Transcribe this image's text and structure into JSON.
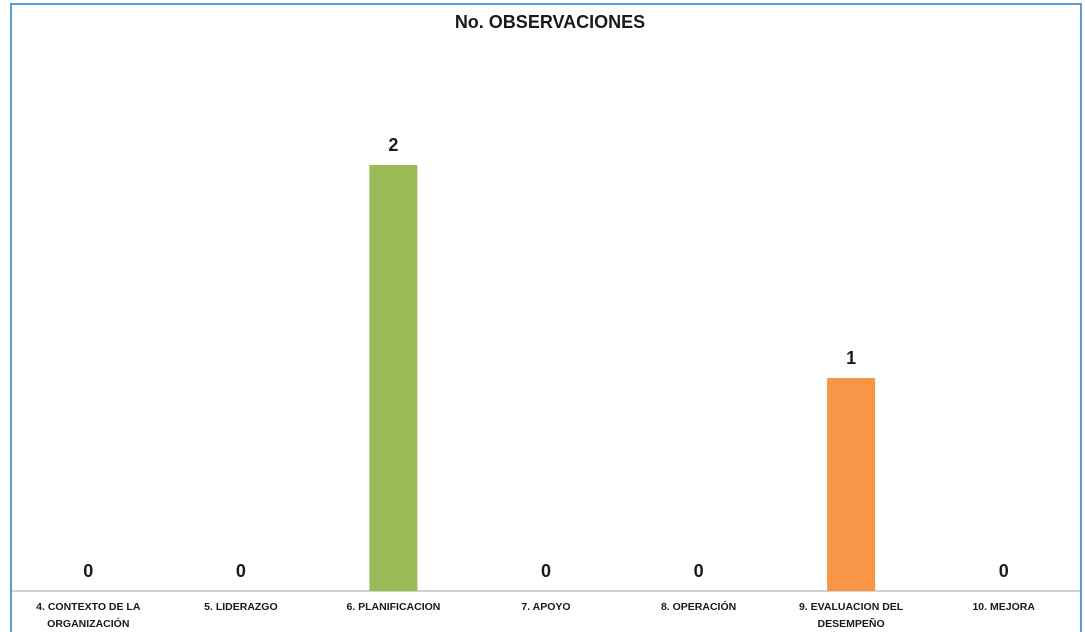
{
  "chart_data": {
    "type": "bar",
    "title": "No. OBSERVACIONES",
    "xlabel": "",
    "ylabel": "",
    "categories": [
      [
        "4. CONTEXTO DE LA",
        "ORGANIZACIÓN"
      ],
      [
        "5. LIDERAZGO"
      ],
      [
        "6. PLANIFICACION"
      ],
      [
        "7. APOYO"
      ],
      [
        "8. OPERACIÓN"
      ],
      [
        "9. EVALUACION DEL",
        "DESEMPEÑO"
      ],
      [
        "10. MEJORA"
      ]
    ],
    "values": [
      0,
      0,
      2,
      0,
      0,
      1,
      0
    ],
    "data_labels": [
      "0",
      "0",
      "2",
      "0",
      "0",
      "1",
      "0"
    ],
    "bar_colors": [
      "#4472c4",
      "#ed7d31",
      "#9bbb59",
      "#8064a2",
      "#4bacc6",
      "#f79646",
      "#2c4d75"
    ],
    "ylim": [
      0,
      2
    ],
    "grid": false,
    "legend": "none",
    "frame_color": "#5b9bd5",
    "axis_color": "#a6a6a6"
  }
}
